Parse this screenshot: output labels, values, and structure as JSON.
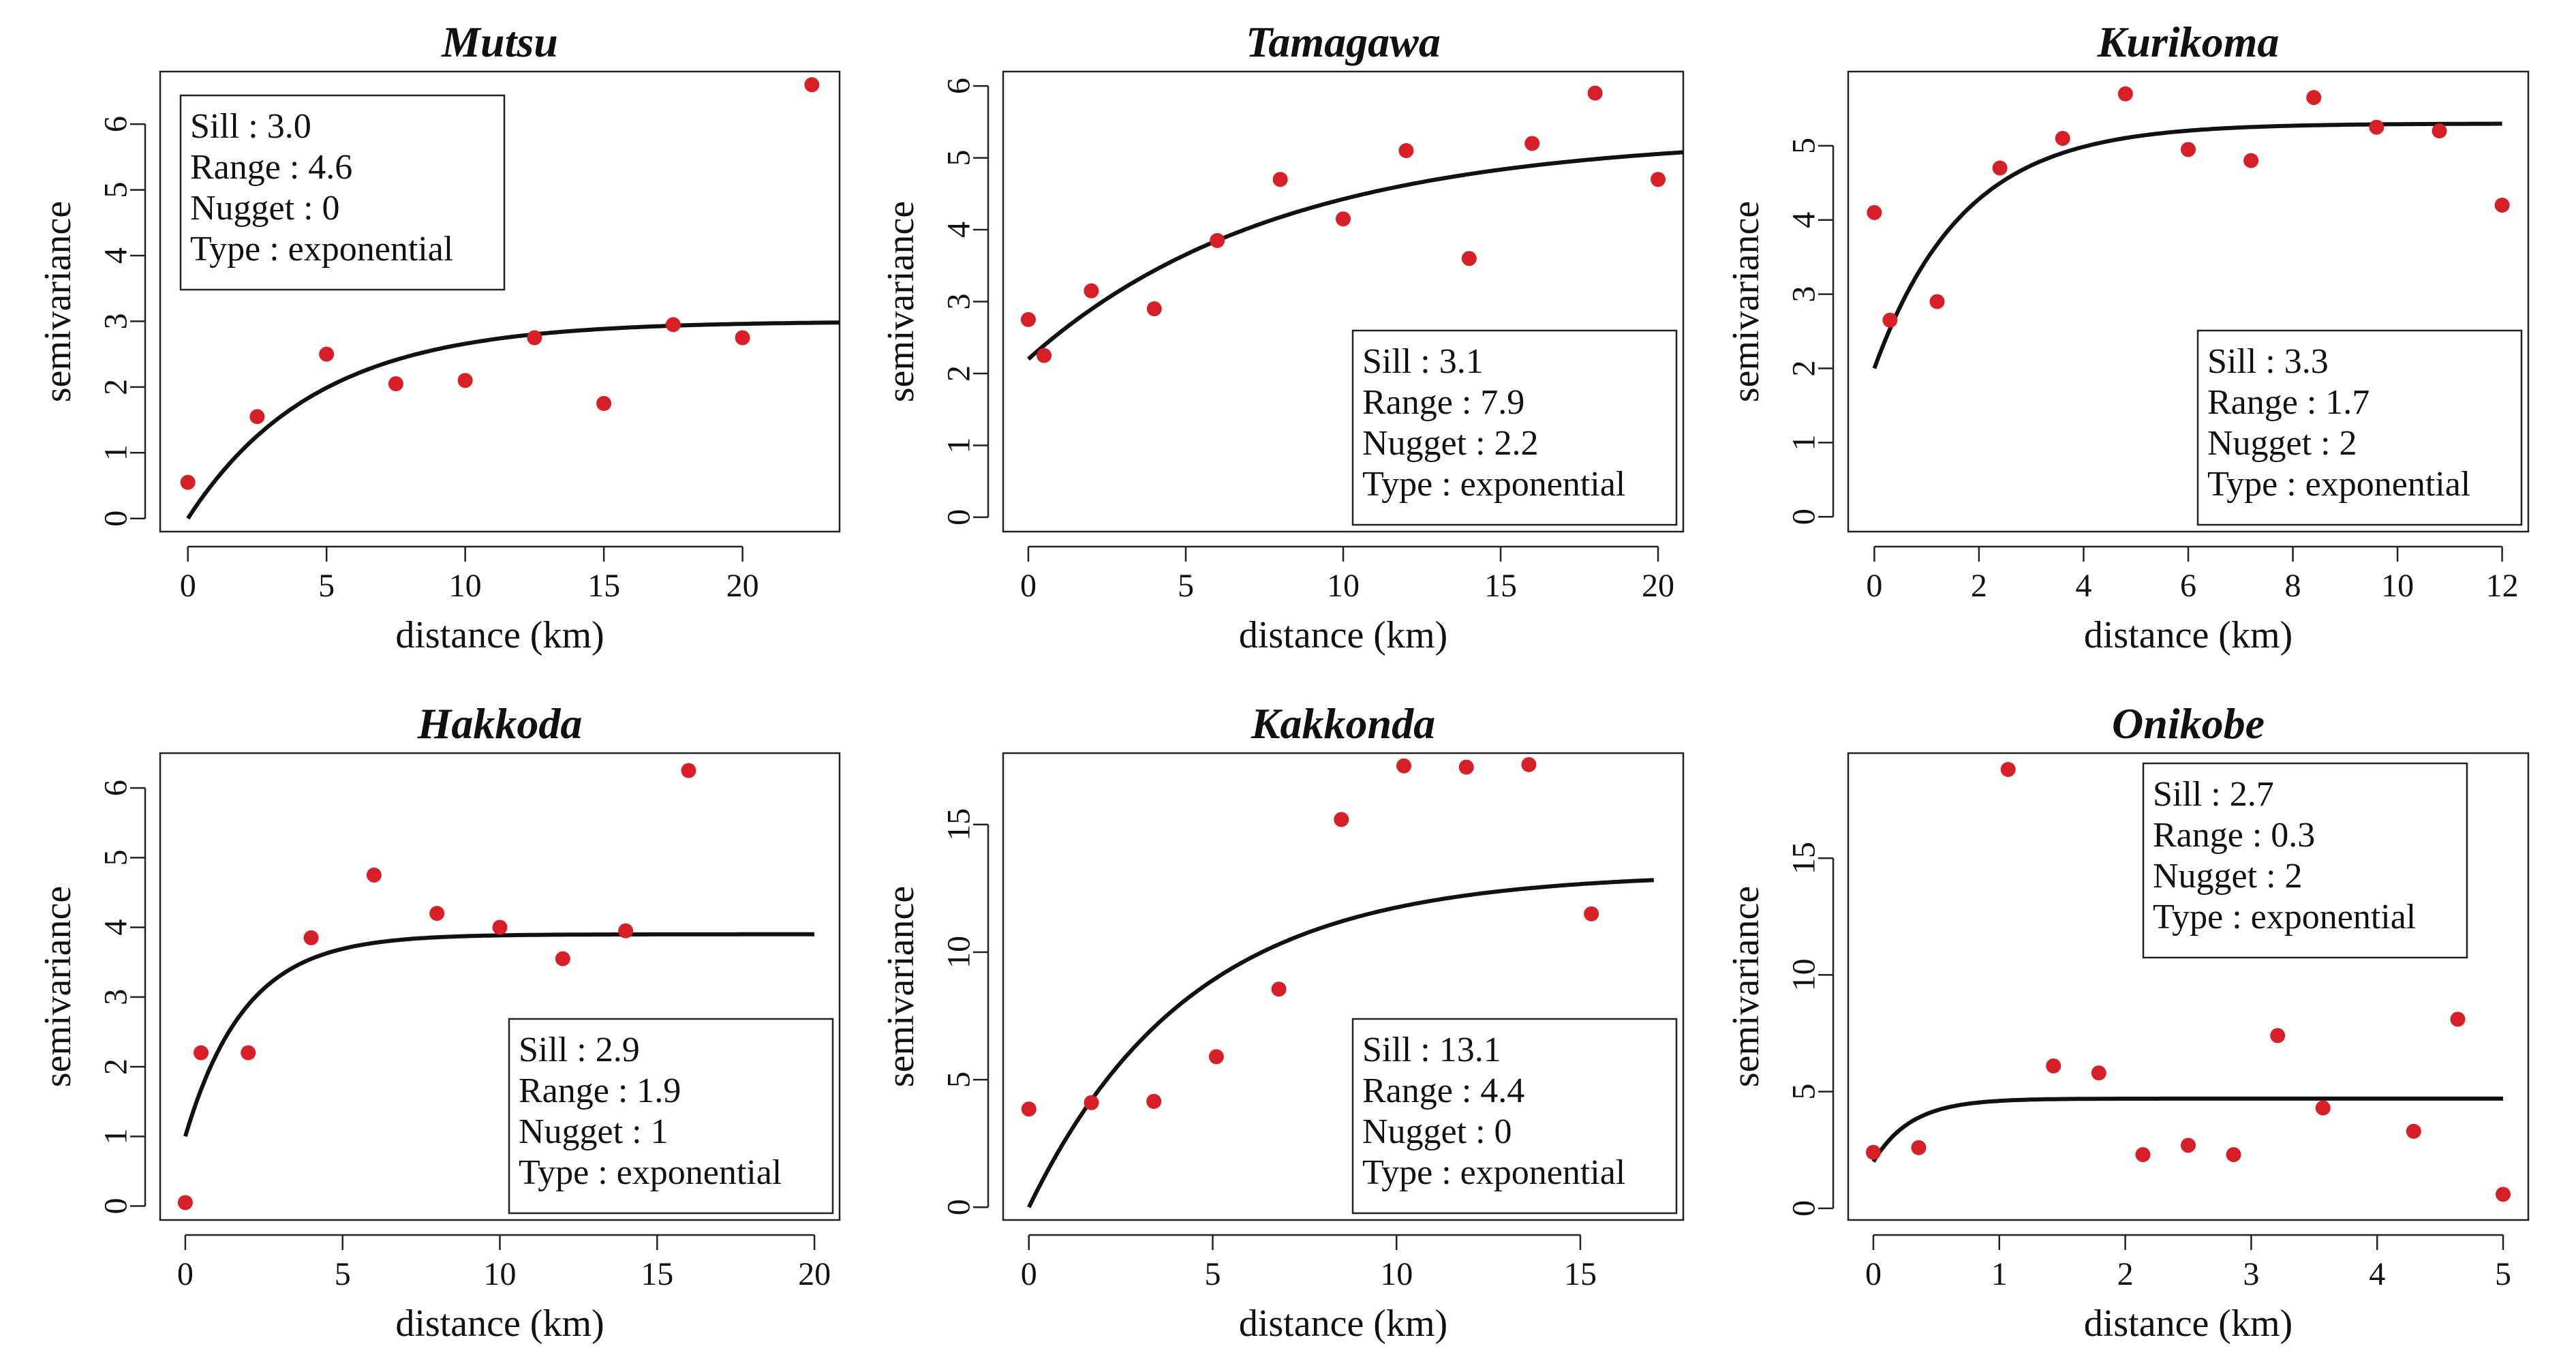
{
  "chart_data": [
    {
      "type": "scatter",
      "title": "Mutsu",
      "xlabel": "distance (km)",
      "ylabel": "semivariance",
      "xlim": [
        -1,
        23.5
      ],
      "ylim": [
        -0.2,
        6.8
      ],
      "xticks": [
        "0",
        "5",
        "10",
        "15",
        "20"
      ],
      "yticks": [
        "0",
        "1",
        "2",
        "3",
        "4",
        "5",
        "6"
      ],
      "points": {
        "x": [
          0,
          2.5,
          5,
          7.5,
          10,
          12.5,
          15,
          17.5,
          20,
          22.5
        ],
        "y": [
          0.55,
          1.55,
          2.5,
          2.05,
          2.1,
          2.75,
          1.75,
          2.95,
          2.75,
          6.6
        ]
      },
      "model": {
        "type": "exponential",
        "sill": 3.0,
        "range": 4.6,
        "nugget": 0,
        "x_end": 23.5
      },
      "box_lines": [
        "Sill : 3.0",
        "Range : 4.6",
        "Nugget : 0",
        "Type : exponential"
      ],
      "box_position": "top-left"
    },
    {
      "type": "scatter",
      "title": "Tamagawa",
      "xlabel": "distance (km)",
      "ylabel": "semivariance",
      "xlim": [
        -0.8,
        20.8
      ],
      "ylim": [
        -0.2,
        6.2
      ],
      "xticks": [
        "0",
        "5",
        "10",
        "15",
        "20"
      ],
      "yticks": [
        "0",
        "1",
        "2",
        "3",
        "4",
        "5",
        "6"
      ],
      "points": {
        "x": [
          0,
          0.5,
          2,
          4,
          6,
          8,
          10,
          12,
          14,
          16,
          18,
          20
        ],
        "y": [
          2.75,
          2.25,
          3.15,
          2.9,
          3.85,
          4.7,
          4.15,
          5.1,
          3.6,
          5.2,
          5.9,
          4.7
        ]
      },
      "model": {
        "type": "exponential",
        "sill": 3.1,
        "range": 7.9,
        "nugget": 2.2,
        "x_end": 20.8
      },
      "box_lines": [
        "Sill : 3.1",
        "Range : 7.9",
        "Nugget : 2.2",
        "Type : exponential"
      ],
      "box_position": "bottom-right"
    },
    {
      "type": "scatter",
      "title": "Kurikoma",
      "xlabel": "distance (km)",
      "ylabel": "semivariance",
      "xlim": [
        -0.5,
        12.5
      ],
      "ylim": [
        -0.2,
        6.0
      ],
      "xticks": [
        "0",
        "2",
        "4",
        "6",
        "8",
        "10",
        "12"
      ],
      "yticks": [
        "0",
        "1",
        "2",
        "3",
        "4",
        "5"
      ],
      "points": {
        "x": [
          0,
          0.3,
          1.2,
          2.4,
          3.6,
          4.8,
          6,
          7.2,
          8.4,
          9.6,
          10.8,
          12
        ],
        "y": [
          4.1,
          2.65,
          2.9,
          4.7,
          5.1,
          5.7,
          4.95,
          4.8,
          5.65,
          5.25,
          5.2,
          4.2
        ]
      },
      "model": {
        "type": "exponential",
        "sill": 3.3,
        "range": 1.7,
        "nugget": 2,
        "x_end": 12
      },
      "box_lines": [
        "Sill : 3.3",
        "Range : 1.7",
        "Nugget : 2",
        "Type : exponential"
      ],
      "box_position": "bottom-right"
    },
    {
      "type": "scatter",
      "title": "Hakkoda",
      "xlabel": "distance (km)",
      "ylabel": "semivariance",
      "xlim": [
        -0.8,
        20.8
      ],
      "ylim": [
        -0.2,
        6.5
      ],
      "xticks": [
        "0",
        "5",
        "10",
        "15",
        "20"
      ],
      "yticks": [
        "0",
        "1",
        "2",
        "3",
        "4",
        "5",
        "6"
      ],
      "points": {
        "x": [
          0,
          0.5,
          2,
          4,
          6,
          8,
          10,
          12,
          14,
          16
        ],
        "y": [
          0.05,
          2.2,
          2.2,
          3.85,
          4.75,
          4.2,
          4.0,
          3.55,
          3.95,
          6.25
        ]
      },
      "model": {
        "type": "exponential",
        "sill": 2.9,
        "range": 1.9,
        "nugget": 1,
        "x_end": 20
      },
      "box_lines": [
        "Sill : 2.9",
        "Range : 1.9",
        "Nugget : 1",
        "Type : exponential"
      ],
      "box_position": "bottom-right"
    },
    {
      "type": "scatter",
      "title": "Kakkonda",
      "xlabel": "distance (km)",
      "ylabel": "semivariance",
      "xlim": [
        -0.7,
        17.8
      ],
      "ylim": [
        -0.5,
        17.8
      ],
      "xticks": [
        "0",
        "5",
        "10",
        "15"
      ],
      "yticks": [
        "0",
        "5",
        "10",
        "15"
      ],
      "points": {
        "x": [
          0,
          1.7,
          3.4,
          5.1,
          6.8,
          8.5,
          10.2,
          11.9,
          13.6,
          15.3
        ],
        "y": [
          3.85,
          4.1,
          4.15,
          5.9,
          8.55,
          15.2,
          17.3,
          17.25,
          17.35,
          11.5
        ]
      },
      "model": {
        "type": "exponential",
        "sill": 13.1,
        "range": 4.4,
        "nugget": 0,
        "x_end": 17
      },
      "box_lines": [
        "Sill : 13.1",
        "Range : 4.4",
        "Nugget : 0",
        "Type : exponential"
      ],
      "box_position": "bottom-right"
    },
    {
      "type": "scatter",
      "title": "Onikobe",
      "xlabel": "distance (km)",
      "ylabel": "semivariance",
      "xlim": [
        -0.2,
        5.2
      ],
      "ylim": [
        -0.5,
        19.5
      ],
      "xticks": [
        "0",
        "1",
        "2",
        "3",
        "4",
        "5"
      ],
      "yticks": [
        "0",
        "5",
        "10",
        "15"
      ],
      "points": {
        "x": [
          0,
          0.36,
          1.07,
          1.43,
          1.79,
          2.14,
          2.5,
          2.86,
          3.21,
          3.57,
          4.29,
          4.64,
          5
        ],
        "y": [
          2.4,
          2.6,
          18.8,
          6.1,
          5.8,
          2.3,
          2.7,
          2.3,
          7.4,
          4.3,
          3.3,
          8.1,
          0.6
        ]
      },
      "model": {
        "type": "exponential",
        "sill": 2.7,
        "range": 0.3,
        "nugget": 2,
        "x_end": 5
      },
      "box_lines": [
        "Sill : 2.7",
        "Range : 0.3",
        "Nugget : 2",
        "Type : exponential"
      ],
      "box_position": "top-right"
    }
  ]
}
